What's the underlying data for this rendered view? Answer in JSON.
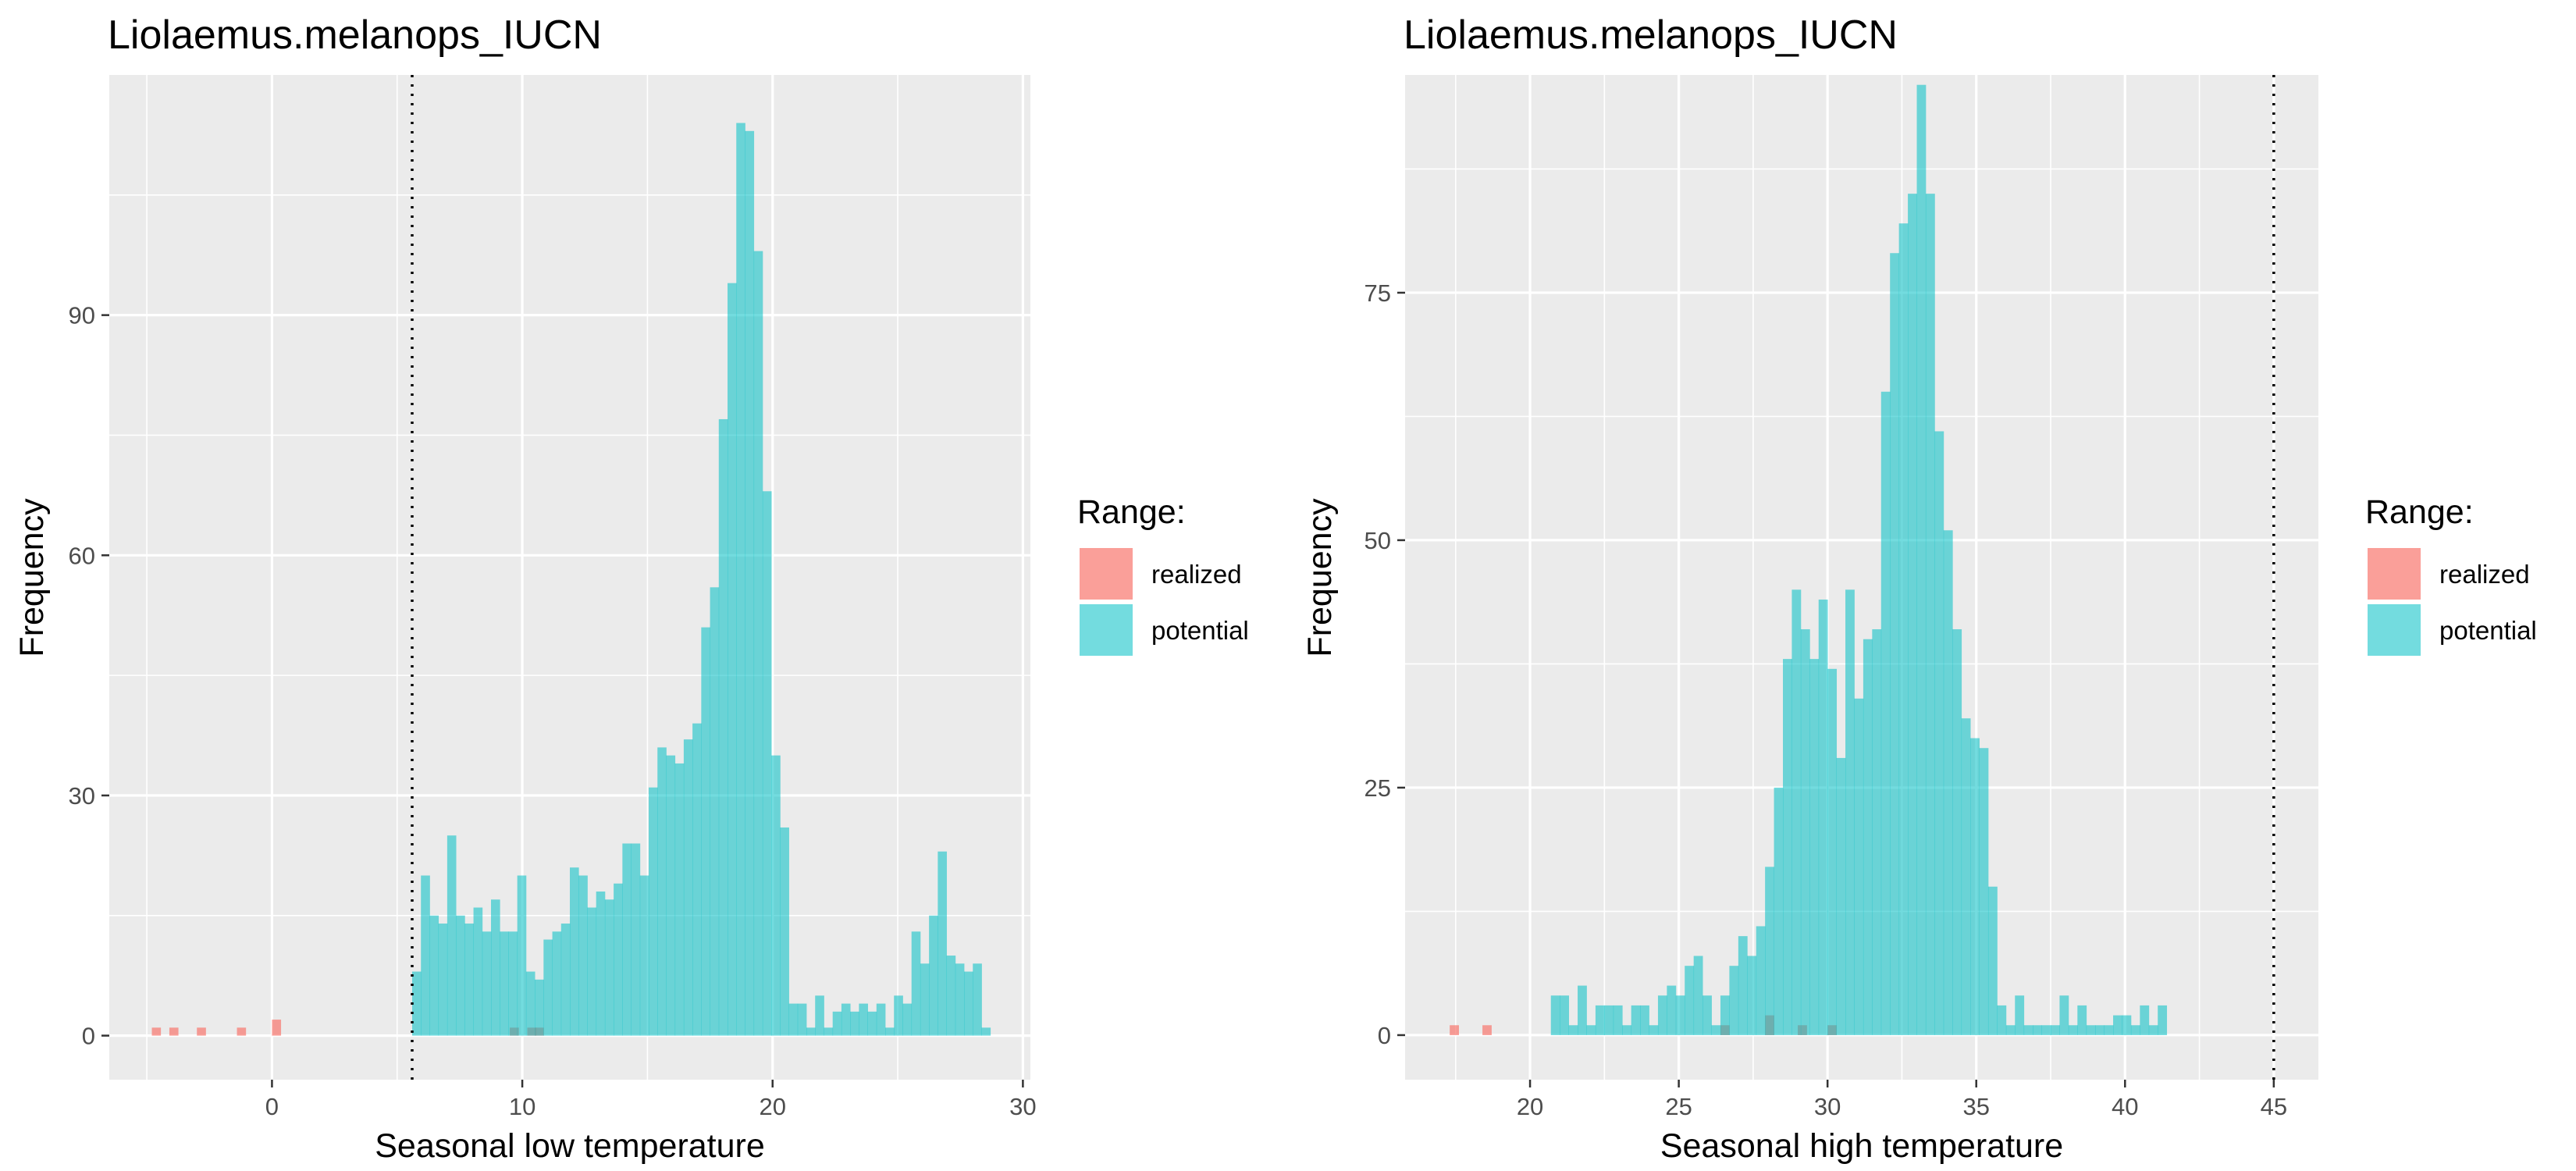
{
  "chart_data": [
    {
      "type": "histogram",
      "title": "Liolaemus.melanops_IUCN",
      "xlabel": "Seasonal low temperature",
      "ylabel": "Frequency",
      "xlim": [
        -6.5,
        30.3
      ],
      "ylim": [
        -5.5,
        120
      ],
      "xticks": [
        0,
        10,
        20,
        30
      ],
      "yticks": [
        0,
        30,
        60,
        90
      ],
      "bin_width": 0.35,
      "vline": {
        "x": 5.6,
        "style": "dotted"
      },
      "grid": true,
      "legend": {
        "title": "Range:",
        "position": "right",
        "items": [
          "realized",
          "potential"
        ]
      },
      "series": [
        {
          "name": "realized",
          "color": "#F8766D",
          "x": [
            -4.8,
            -4.1,
            -3.0,
            -1.4,
            0.0,
            9.5,
            10.2,
            10.5
          ],
          "y": [
            1,
            1,
            1,
            1,
            2,
            1,
            1,
            1
          ]
        },
        {
          "name": "potential",
          "color": "#00BFC4",
          "x": [
            5.6,
            5.95,
            6.3,
            6.65,
            7.0,
            7.35,
            7.7,
            8.05,
            8.4,
            8.75,
            9.1,
            9.45,
            9.8,
            10.15,
            10.5,
            10.85,
            11.2,
            11.55,
            11.9,
            12.25,
            12.6,
            12.95,
            13.3,
            13.65,
            14.0,
            14.35,
            14.7,
            15.05,
            15.4,
            15.75,
            16.1,
            16.45,
            16.8,
            17.15,
            17.5,
            17.85,
            18.2,
            18.55,
            18.9,
            19.25,
            19.6,
            19.95,
            20.3,
            20.65,
            21.0,
            21.35,
            21.7,
            22.05,
            22.4,
            22.75,
            23.1,
            23.45,
            23.8,
            24.15,
            24.5,
            24.85,
            25.2,
            25.55,
            25.9,
            26.25,
            26.6,
            26.95,
            27.3,
            27.65,
            28.0,
            28.35
          ],
          "y": [
            8,
            20,
            15,
            14,
            25,
            15,
            14,
            16,
            13,
            17,
            13,
            13,
            20,
            8,
            7,
            12,
            13,
            14,
            21,
            20,
            16,
            18,
            17,
            19,
            24,
            24,
            20,
            31,
            36,
            35,
            34,
            37,
            39,
            51,
            56,
            77,
            94,
            114,
            113,
            98,
            68,
            35,
            26,
            4,
            4,
            1,
            5,
            1,
            3,
            4,
            3,
            4,
            3,
            4,
            1,
            5,
            4,
            13,
            9,
            15,
            23,
            10,
            9,
            8,
            9,
            1
          ]
        }
      ]
    },
    {
      "type": "histogram",
      "title": "Liolaemus.melanops_IUCN",
      "xlabel": "Seasonal high temperature",
      "ylabel": "Frequency",
      "xlim": [
        15.8,
        46.5
      ],
      "ylim": [
        -4.5,
        97
      ],
      "xticks": [
        20,
        25,
        30,
        35,
        40,
        45
      ],
      "yticks": [
        0,
        25,
        50,
        75
      ],
      "bin_width": 0.3,
      "vline": {
        "x": 45.0,
        "style": "dotted"
      },
      "grid": true,
      "legend": {
        "title": "Range:",
        "position": "right",
        "items": [
          "realized",
          "potential"
        ]
      },
      "series": [
        {
          "name": "realized",
          "color": "#F8766D",
          "x": [
            17.3,
            18.4,
            26.4,
            27.9,
            29.0,
            30.0
          ],
          "y": [
            1,
            1,
            1,
            2,
            1,
            1
          ]
        },
        {
          "name": "potential",
          "color": "#00BFC4",
          "x": [
            20.7,
            21.0,
            21.3,
            21.6,
            21.9,
            22.2,
            22.5,
            22.8,
            23.1,
            23.4,
            23.7,
            24.0,
            24.3,
            24.6,
            24.9,
            25.2,
            25.5,
            25.8,
            26.1,
            26.4,
            26.7,
            27.0,
            27.3,
            27.6,
            27.9,
            28.2,
            28.5,
            28.8,
            29.1,
            29.4,
            29.7,
            30.0,
            30.3,
            30.6,
            30.9,
            31.2,
            31.5,
            31.8,
            32.1,
            32.4,
            32.7,
            33.0,
            33.3,
            33.6,
            33.9,
            34.2,
            34.5,
            34.8,
            35.1,
            35.4,
            35.7,
            36.0,
            36.3,
            36.6,
            36.9,
            37.2,
            37.5,
            37.8,
            38.1,
            38.4,
            38.7,
            39.0,
            39.3,
            39.6,
            39.9,
            40.2,
            40.5,
            40.8,
            41.1
          ],
          "y": [
            4,
            4,
            1,
            5,
            1,
            3,
            3,
            3,
            1,
            3,
            3,
            1,
            4,
            5,
            4,
            7,
            8,
            4,
            1,
            4,
            7,
            10,
            8,
            11,
            17,
            25,
            38,
            45,
            41,
            38,
            44,
            37,
            28,
            45,
            34,
            40,
            41,
            65,
            79,
            82,
            85,
            96,
            85,
            61,
            51,
            41,
            32,
            30,
            29,
            15,
            3,
            1,
            4,
            1,
            1,
            1,
            1,
            4,
            1,
            3,
            1,
            1,
            1,
            2,
            2,
            1,
            3,
            1,
            3
          ]
        }
      ]
    }
  ]
}
